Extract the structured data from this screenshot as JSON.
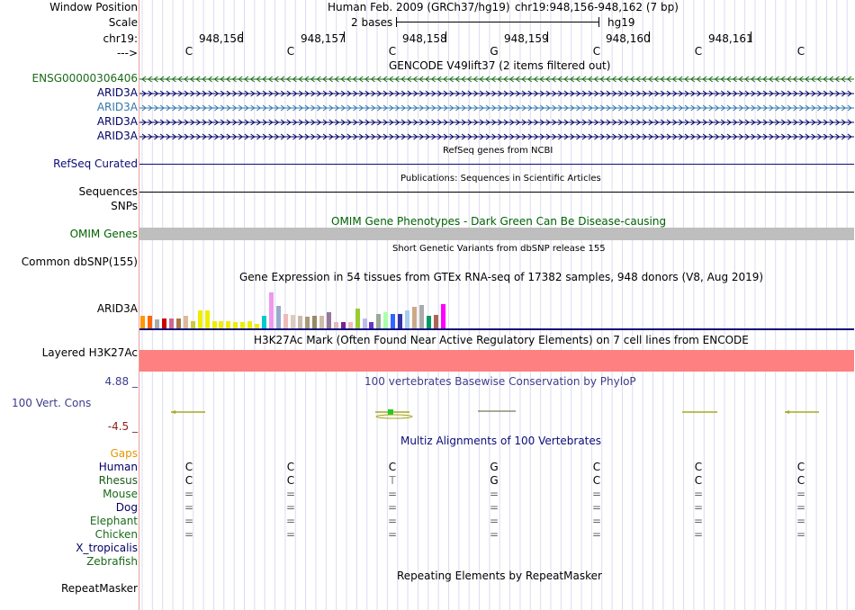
{
  "header": {
    "window_position_label": "Window Position",
    "scale_label": "Scale",
    "chrom_label": "chr19:",
    "strand_label": "--->",
    "assembly_text": "Human Feb. 2009 (GRCh37/hg19)",
    "position_text": "chr19:948,156-948,162 (7 bp)",
    "scale_text": "2 bases",
    "db_text": "hg19",
    "positions": [
      "948,156",
      "948,157",
      "948,158",
      "948,159",
      "948,160",
      "948,161"
    ],
    "bases": [
      "C",
      "C",
      "C",
      "G",
      "C",
      "C",
      "C"
    ]
  },
  "tracks": {
    "gencode": {
      "title": "GENCODE V49lift37 (2 items filtered out)",
      "items": [
        "ENSG00000306406",
        "ARID3A",
        "ARID3A",
        "ARID3A",
        "ARID3A"
      ]
    },
    "refseq": {
      "title": "RefSeq genes from NCBI",
      "label": "RefSeq Curated"
    },
    "pubs": {
      "title": "Publications: Sequences in Scientific Articles",
      "label1": "Sequences",
      "label2": "SNPs"
    },
    "omim": {
      "title": "OMIM Gene Phenotypes - Dark Green Can Be Disease-causing",
      "label": "OMIM Genes"
    },
    "dbsnp": {
      "title": "Short Genetic Variants from dbSNP release 155",
      "label": "Common dbSNP(155)"
    },
    "gtex": {
      "title": "Gene Expression in 54 tissues from GTEx RNA-seq of 17382 samples, 948 donors (V8, Aug 2019)",
      "label": "ARID3A",
      "bar_colors": [
        "#ff9900",
        "#ff6600",
        "#aaaaaa",
        "#cc0000",
        "#cc6699",
        "#aa7744",
        "#ddbb99",
        "#cccc33",
        "#eeee00",
        "#eeee00",
        "#eeee00",
        "#eeee00",
        "#eeee00",
        "#eeee00",
        "#eeee00",
        "#eeee00",
        "#eeee00",
        "#00cccc",
        "#ee99ee",
        "#99aacc",
        "#eebbbb",
        "#ddccbb",
        "#ccbbaa",
        "#aa9977",
        "#998866",
        "#ccbbaa",
        "#997799",
        "#ddbbbb",
        "#772299",
        "#eebbbb",
        "#99cc33",
        "#bbbbee",
        "#6633cc",
        "#99aa99",
        "#aaffaa",
        "#3366ff",
        "#3333aa",
        "#aaccee",
        "#ccaa88",
        "#aaaaaa",
        "#009966",
        "#aa6655",
        "#ff00ff"
      ],
      "bar_values": [
        0.28,
        0.28,
        0.2,
        0.22,
        0.22,
        0.22,
        0.28,
        0.16,
        0.4,
        0.4,
        0.16,
        0.16,
        0.16,
        0.14,
        0.14,
        0.16,
        0.1,
        0.28,
        0.82,
        0.5,
        0.32,
        0.3,
        0.28,
        0.26,
        0.28,
        0.28,
        0.36,
        0.14,
        0.14,
        0.14,
        0.44,
        0.22,
        0.14,
        0.32,
        0.36,
        0.32,
        0.32,
        0.4,
        0.48,
        0.54,
        0.28,
        0.3,
        0.56
      ]
    },
    "h3k27ac": {
      "title": "H3K27Ac Mark (Often Found Near Active Regulatory Elements) on 7 cell lines from ENCODE",
      "label": "Layered H3K27Ac"
    },
    "phylop": {
      "title": "100 vertebrates Basewise Conservation by PhyloP",
      "label": "100 Vert. Cons",
      "max": "4.88 _",
      "min": "-4.5 _"
    },
    "multiz": {
      "title": "Multiz Alignments of 100 Vertebrates",
      "gaps_label": "Gaps",
      "species": [
        {
          "name": "Human",
          "color": "#000066",
          "bases": [
            "C",
            "C",
            "C",
            "G",
            "C",
            "C",
            "C"
          ]
        },
        {
          "name": "Rhesus",
          "color": "#1a5c1a",
          "bases": [
            "C",
            "C",
            "T",
            "G",
            "C",
            "C",
            "C"
          ]
        },
        {
          "name": "Mouse",
          "color": "#1a6a1a",
          "bases": [
            "=",
            "=",
            "=",
            "=",
            "=",
            "=",
            "="
          ]
        },
        {
          "name": "Dog",
          "color": "#000066",
          "bases": [
            "=",
            "=",
            "=",
            "=",
            "=",
            "=",
            "="
          ]
        },
        {
          "name": "Elephant",
          "color": "#1a6a1a",
          "bases": [
            "=",
            "=",
            "=",
            "=",
            "=",
            "=",
            "="
          ]
        },
        {
          "name": "Chicken",
          "color": "#1a6a1a",
          "bases": [
            "=",
            "=",
            "=",
            "=",
            "=",
            "=",
            "="
          ]
        },
        {
          "name": "X_tropicalis",
          "color": "#000066",
          "bases": []
        },
        {
          "name": "Zebrafish",
          "color": "#1a6a1a",
          "bases": []
        }
      ]
    },
    "rmsk": {
      "title": "Repeating Elements by RepeatMasker",
      "label": "RepeatMasker"
    }
  },
  "colors": {
    "gencode_green": "#1a6a1a",
    "arid_blue": "#000066",
    "arid_light": "#3377aa",
    "refseq_navy": "#0c0c78",
    "omim_green": "#006400",
    "omim_bar": "#bebebe",
    "h3k27ac": "#ff8080",
    "phylop_title": "#3c3c8c",
    "phylop_min": "#8c1e1e",
    "gaps": "#e69600"
  }
}
